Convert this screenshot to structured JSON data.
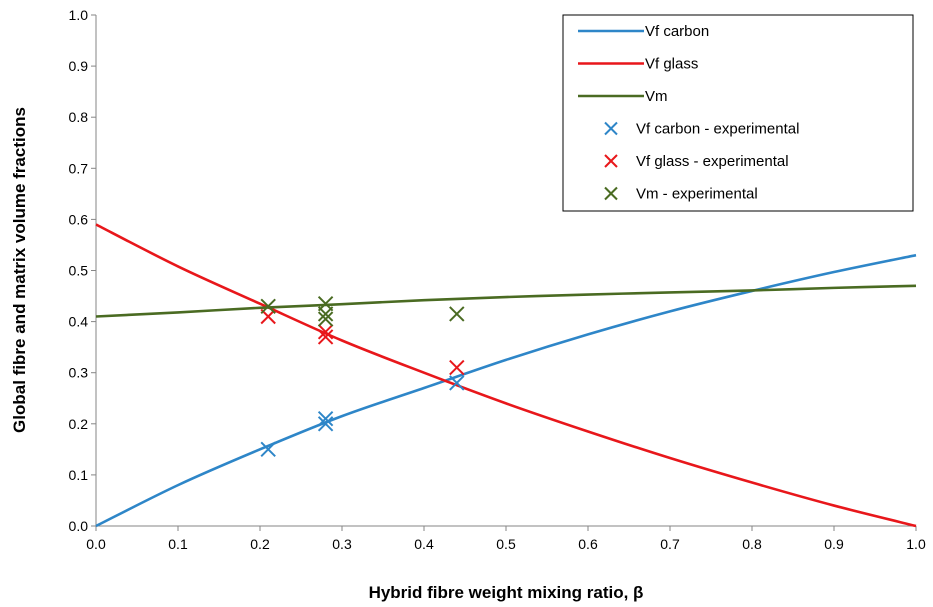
{
  "chart_data": {
    "type": "line",
    "title": "",
    "xlabel": "Hybrid fibre weight mixing ratio, β",
    "ylabel": "Global fibre and matrix volume fractions",
    "xlim": [
      0,
      1
    ],
    "ylim": [
      0,
      1
    ],
    "x_ticks": [
      "0.0",
      "0.1",
      "0.2",
      "0.3",
      "0.4",
      "0.5",
      "0.6",
      "0.7",
      "0.8",
      "0.9",
      "1.0"
    ],
    "y_ticks": [
      "0.0",
      "0.1",
      "0.2",
      "0.3",
      "0.4",
      "0.5",
      "0.6",
      "0.7",
      "0.8",
      "0.9",
      "1.0"
    ],
    "grid": false,
    "legend_position": "top-right",
    "series": [
      {
        "name": "Vf carbon",
        "kind": "line",
        "color": "#2E86C8",
        "x": [
          0.0,
          0.1,
          0.2,
          0.3,
          0.4,
          0.5,
          0.6,
          0.7,
          0.8,
          0.9,
          1.0
        ],
        "y": [
          0.0,
          0.08,
          0.15,
          0.215,
          0.27,
          0.325,
          0.375,
          0.42,
          0.46,
          0.497,
          0.53
        ]
      },
      {
        "name": "Vf glass",
        "kind": "line",
        "color": "#E8171B",
        "x": [
          0.0,
          0.1,
          0.2,
          0.3,
          0.4,
          0.5,
          0.6,
          0.7,
          0.8,
          0.9,
          1.0
        ],
        "y": [
          0.59,
          0.508,
          0.435,
          0.363,
          0.3,
          0.24,
          0.185,
          0.133,
          0.085,
          0.04,
          0.0
        ]
      },
      {
        "name": "Vm",
        "kind": "line",
        "color": "#4A6B22",
        "x": [
          0.0,
          0.1,
          0.2,
          0.3,
          0.4,
          0.5,
          0.6,
          0.7,
          0.8,
          0.9,
          1.0
        ],
        "y": [
          0.41,
          0.418,
          0.427,
          0.434,
          0.442,
          0.448,
          0.453,
          0.457,
          0.461,
          0.466,
          0.47
        ]
      },
      {
        "name": "Vf carbon - experimental",
        "kind": "marker",
        "color": "#2E86C8",
        "x": [
          0.21,
          0.28,
          0.28,
          0.44
        ],
        "y": [
          0.15,
          0.2,
          0.21,
          0.28
        ]
      },
      {
        "name": "Vf glass - experimental",
        "kind": "marker",
        "color": "#E8171B",
        "x": [
          0.21,
          0.28,
          0.28,
          0.44
        ],
        "y": [
          0.41,
          0.37,
          0.38,
          0.31
        ]
      },
      {
        "name": "Vm - experimental",
        "kind": "marker",
        "color": "#4A6B22",
        "x": [
          0.21,
          0.28,
          0.28,
          0.28,
          0.44
        ],
        "y": [
          0.43,
          0.435,
          0.415,
          0.405,
          0.415
        ]
      }
    ]
  }
}
